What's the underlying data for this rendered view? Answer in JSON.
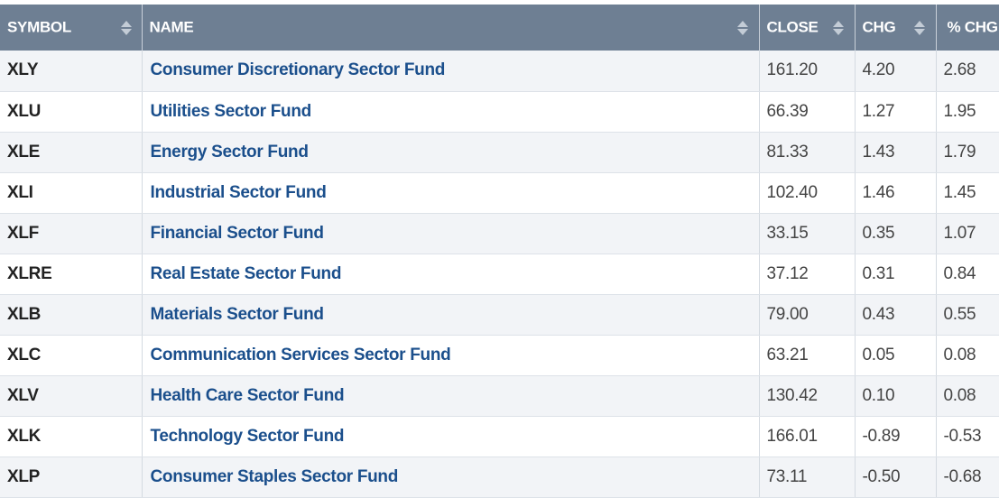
{
  "table": {
    "headers": {
      "symbol": "SYMBOL",
      "name": "NAME",
      "close": "CLOSE",
      "chg": "CHG",
      "pct_chg": "% CHG"
    },
    "rows": [
      {
        "symbol": "XLY",
        "name": "Consumer Discretionary Sector Fund",
        "close": "161.20",
        "chg": "4.20",
        "pct_chg": "2.68"
      },
      {
        "symbol": "XLU",
        "name": "Utilities Sector Fund",
        "close": "66.39",
        "chg": "1.27",
        "pct_chg": "1.95"
      },
      {
        "symbol": "XLE",
        "name": "Energy Sector Fund",
        "close": "81.33",
        "chg": "1.43",
        "pct_chg": "1.79"
      },
      {
        "symbol": "XLI",
        "name": "Industrial Sector Fund",
        "close": "102.40",
        "chg": "1.46",
        "pct_chg": "1.45"
      },
      {
        "symbol": "XLF",
        "name": "Financial Sector Fund",
        "close": "33.15",
        "chg": "0.35",
        "pct_chg": "1.07"
      },
      {
        "symbol": "XLRE",
        "name": "Real Estate Sector Fund",
        "close": "37.12",
        "chg": "0.31",
        "pct_chg": "0.84"
      },
      {
        "symbol": "XLB",
        "name": "Materials Sector Fund",
        "close": "79.00",
        "chg": "0.43",
        "pct_chg": "0.55"
      },
      {
        "symbol": "XLC",
        "name": "Communication Services Sector Fund",
        "close": "63.21",
        "chg": "0.05",
        "pct_chg": "0.08"
      },
      {
        "symbol": "XLV",
        "name": "Health Care Sector Fund",
        "close": "130.42",
        "chg": "0.10",
        "pct_chg": "0.08"
      },
      {
        "symbol": "XLK",
        "name": "Technology Sector Fund",
        "close": "166.01",
        "chg": "-0.89",
        "pct_chg": "-0.53"
      },
      {
        "symbol": "XLP",
        "name": "Consumer Staples Sector Fund",
        "close": "73.11",
        "chg": "-0.50",
        "pct_chg": "-0.68"
      }
    ]
  },
  "colors": {
    "header_bg": "#6e7f93",
    "link": "#1b4f8c",
    "row_alt": "#f2f4f7"
  },
  "icons": {
    "sort": "sort-arrows-icon"
  }
}
